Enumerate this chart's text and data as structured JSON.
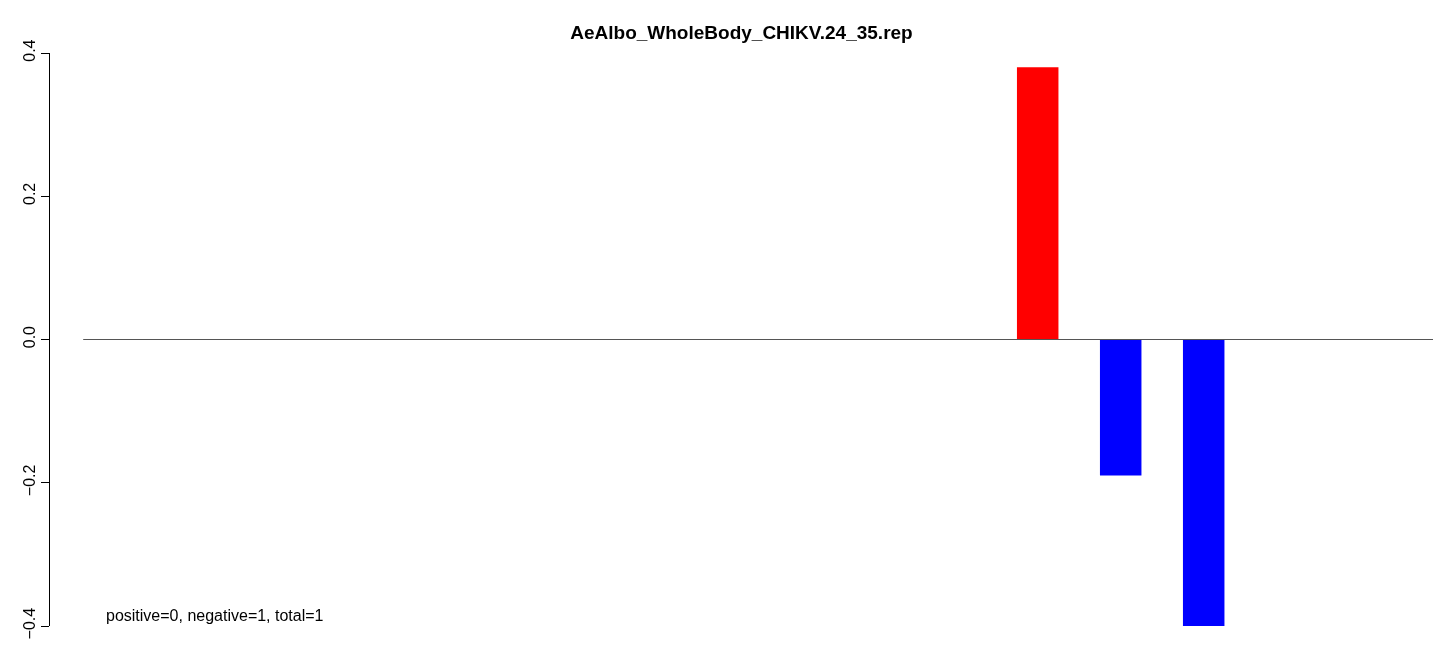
{
  "chart_data": {
    "type": "bar",
    "title": "AeAlbo_WholeBody_CHIKV.24_35.rep",
    "categories": [
      null,
      null,
      null,
      null,
      null,
      null,
      null,
      null,
      null,
      null,
      null,
      null,
      null,
      null,
      null,
      null
    ],
    "values": [
      0,
      0,
      0,
      0,
      0,
      0,
      0,
      0,
      0,
      0,
      0,
      0.38,
      -0.19,
      -0.4,
      0,
      0
    ],
    "colors": [
      "#ff0000",
      "#ff0000",
      "#ff0000",
      "#ff0000",
      "#ff0000",
      "#ff0000",
      "#ff0000",
      "#ff0000",
      "#ff0000",
      "#ff0000",
      "#ff0000",
      "#ff0000",
      "#0000ff",
      "#0000ff",
      "#0000ff",
      "#0000ff"
    ],
    "ylim": [
      -0.4,
      0.4
    ],
    "yticks": [
      {
        "value": -0.4,
        "label": "−0.4"
      },
      {
        "value": -0.2,
        "label": "−0.2"
      },
      {
        "value": 0,
        "label": "0.0"
      },
      {
        "value": 0.2,
        "label": "0.2"
      },
      {
        "value": 0.4,
        "label": "0.4"
      }
    ],
    "tick_labels": "y",
    "grid": false,
    "legend": false,
    "ref_lines": [
      {
        "axis": "y",
        "value": 0,
        "color": "#555555"
      }
    ],
    "annotations": [
      "positive=0, negative=1, total=1"
    ]
  }
}
